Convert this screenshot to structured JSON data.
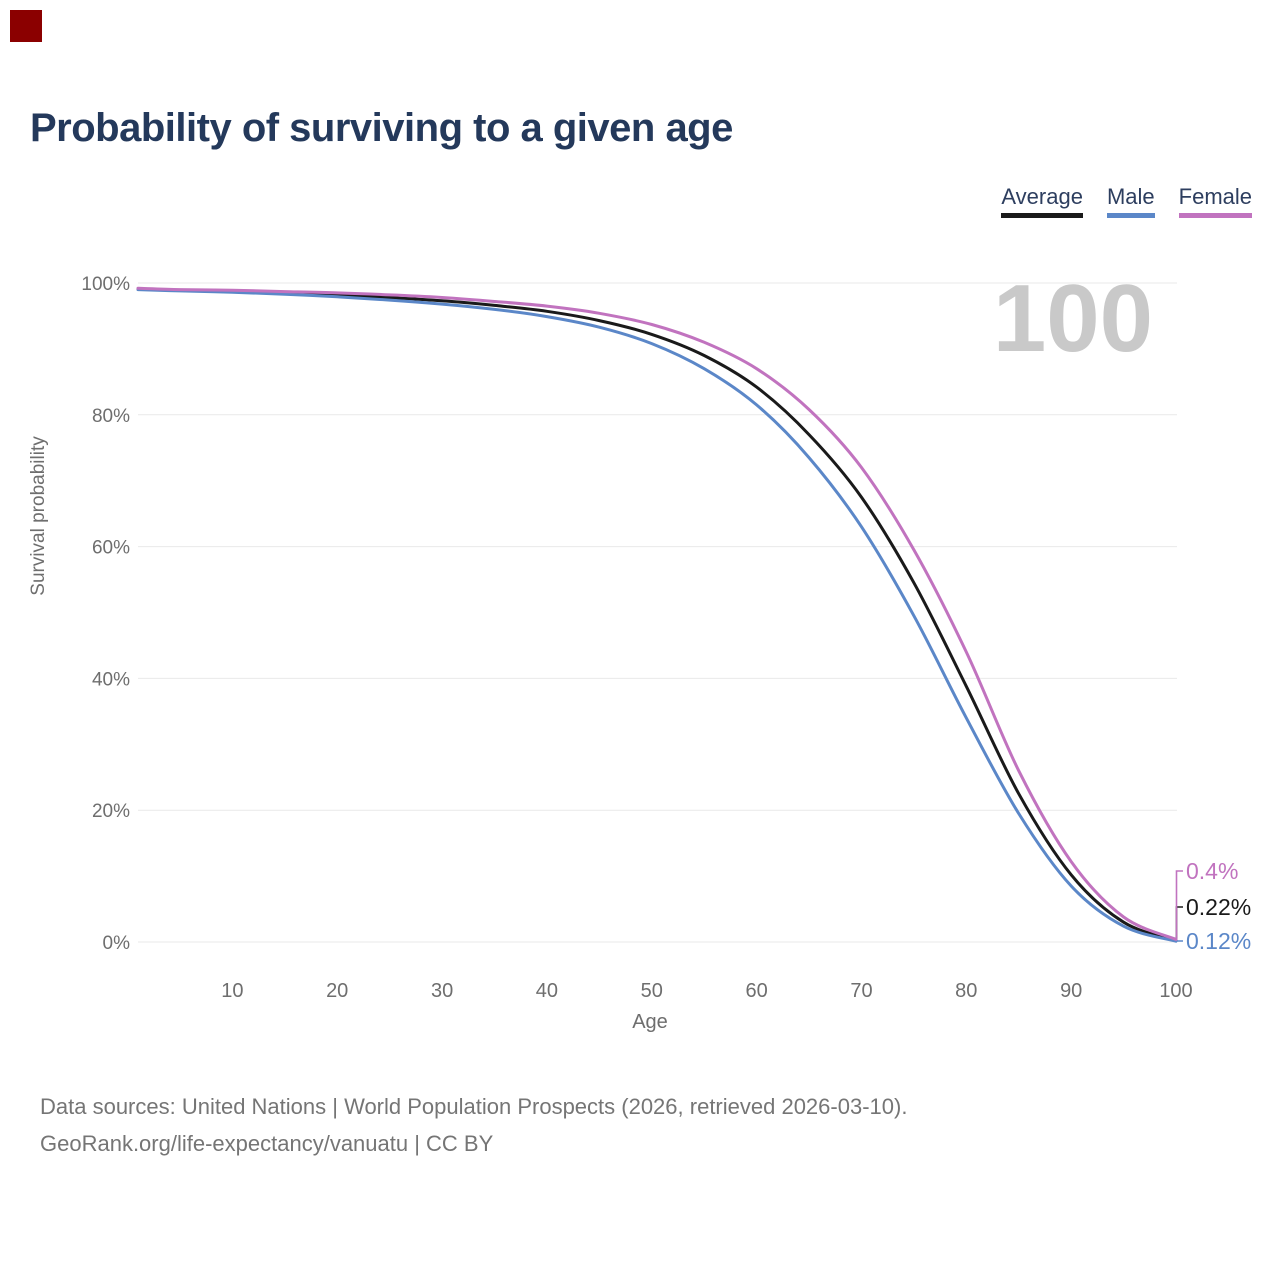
{
  "marker": {
    "color": "#8b0000"
  },
  "title": "Probability of surviving to a given age",
  "legend": [
    {
      "label": "Average",
      "color": "#1a1a1a"
    },
    {
      "label": "Male",
      "color": "#5b87c8"
    },
    {
      "label": "Female",
      "color": "#c173bf"
    }
  ],
  "hover_age_watermark": "100",
  "chart_data": {
    "type": "line",
    "title": "Probability of surviving to a given age",
    "xlabel": "Age",
    "ylabel": "Survival probability",
    "xlim": [
      1,
      100
    ],
    "ylim": [
      0,
      100
    ],
    "grid": "horizontal-only",
    "legend_position": "top-right",
    "gridline_color": "#e9e9e9",
    "tick_color": "#6e6e6e",
    "watermark_color": "#c9c9c9",
    "x_ticks": [
      10,
      20,
      30,
      40,
      50,
      60,
      70,
      80,
      90,
      100
    ],
    "y_ticks": [
      0,
      20,
      40,
      60,
      80,
      100
    ],
    "y_tick_labels": [
      "0%",
      "20%",
      "40%",
      "60%",
      "80%",
      "100%"
    ],
    "x": [
      1,
      5,
      10,
      15,
      20,
      25,
      30,
      35,
      40,
      45,
      50,
      55,
      60,
      65,
      70,
      75,
      80,
      85,
      90,
      95,
      100
    ],
    "series": [
      {
        "name": "Average",
        "color": "#1a1a1a",
        "end_label": "0.22%",
        "values": [
          99.1,
          98.9,
          98.75,
          98.5,
          98.2,
          97.8,
          97.3,
          96.6,
          95.7,
          94.3,
          92.2,
          89.0,
          84.2,
          77.0,
          67.5,
          54.5,
          38.8,
          22.5,
          10.2,
          3.0,
          0.22
        ]
      },
      {
        "name": "Male",
        "color": "#5b87c8",
        "end_label": "0.12%",
        "values": [
          99.0,
          98.8,
          98.6,
          98.3,
          97.9,
          97.4,
          96.8,
          96.0,
          94.9,
          93.3,
          90.8,
          87.0,
          81.5,
          73.5,
          63.0,
          49.5,
          34.0,
          19.5,
          8.5,
          2.4,
          0.12
        ]
      },
      {
        "name": "Female",
        "color": "#c173bf",
        "end_label": "0.4%",
        "values": [
          99.2,
          99.0,
          98.9,
          98.7,
          98.5,
          98.2,
          97.8,
          97.2,
          96.5,
          95.4,
          93.7,
          91.0,
          87.0,
          80.8,
          72.0,
          59.5,
          44.0,
          26.0,
          12.2,
          3.8,
          0.4
        ]
      }
    ]
  },
  "footer": {
    "line1": "Data sources: United Nations | World Population Prospects (2026, retrieved 2026-03-10).",
    "line2": "GeoRank.org/life-expectancy/vanuatu | CC BY"
  }
}
